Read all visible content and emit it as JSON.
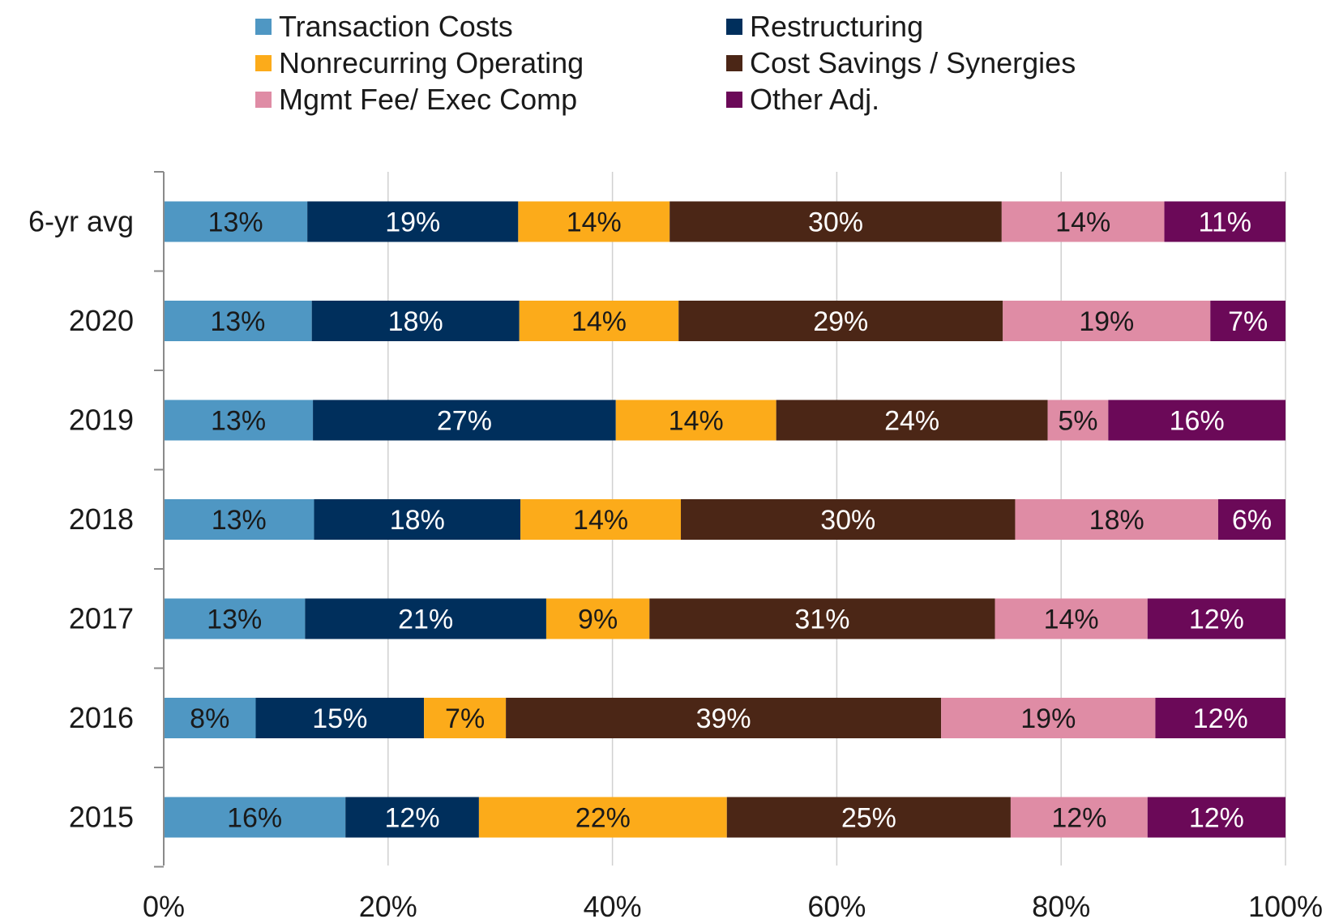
{
  "chart_data": {
    "type": "bar",
    "orientation": "horizontal",
    "stacked": "percent",
    "title": "",
    "xlabel": "",
    "ylabel": "",
    "xlim": [
      0,
      100
    ],
    "x_ticks": [
      "0%",
      "20%",
      "40%",
      "60%",
      "80%",
      "100%"
    ],
    "grid": true,
    "legend_position": "top",
    "categories": [
      "6-yr avg",
      "2020",
      "2019",
      "2018",
      "2017",
      "2016",
      "2015"
    ],
    "series": [
      {
        "name": "Transaction Costs",
        "color": "#4f97c3",
        "label_color": "#1a1a1a",
        "values": [
          12.8,
          13.2,
          13.3,
          13.4,
          12.6,
          8.2,
          16.2
        ],
        "labels": [
          "13%",
          "13%",
          "13%",
          "13%",
          "13%",
          "8%",
          "16%"
        ]
      },
      {
        "name": "Restructuring",
        "color": "#002f5c",
        "label_color": "#ffffff",
        "values": [
          18.8,
          18.5,
          27.0,
          18.4,
          21.5,
          15.0,
          11.9
        ],
        "labels": [
          "19%",
          "18%",
          "27%",
          "18%",
          "21%",
          "15%",
          "12%"
        ]
      },
      {
        "name": "Nonrecurring Operating",
        "color": "#fcab1a",
        "label_color": "#1a1a1a",
        "values": [
          13.5,
          14.2,
          14.3,
          14.3,
          9.2,
          7.3,
          22.1
        ],
        "labels": [
          "14%",
          "14%",
          "14%",
          "14%",
          "9%",
          "7%",
          "22%"
        ]
      },
      {
        "name": "Cost Savings / Synergies",
        "color": "#4b2616",
        "label_color": "#ffffff",
        "values": [
          29.6,
          28.9,
          24.2,
          29.8,
          30.8,
          38.8,
          25.3
        ],
        "labels": [
          "30%",
          "29%",
          "24%",
          "30%",
          "31%",
          "39%",
          "25%"
        ]
      },
      {
        "name": "Mgmt Fee/ Exec Comp",
        "color": "#df8ca5",
        "label_color": "#1a1a1a",
        "values": [
          14.5,
          18.5,
          5.4,
          18.1,
          13.6,
          19.1,
          12.2
        ],
        "labels": [
          "14%",
          "19%",
          "5%",
          "18%",
          "14%",
          "19%",
          "12%"
        ]
      },
      {
        "name": "Other Adj.",
        "color": "#6b0958",
        "label_color": "#ffffff",
        "values": [
          10.8,
          6.7,
          15.8,
          6.0,
          12.3,
          11.6,
          12.3
        ],
        "labels": [
          "11%",
          "7%",
          "16%",
          "6%",
          "12%",
          "12%",
          "12%"
        ]
      }
    ]
  }
}
